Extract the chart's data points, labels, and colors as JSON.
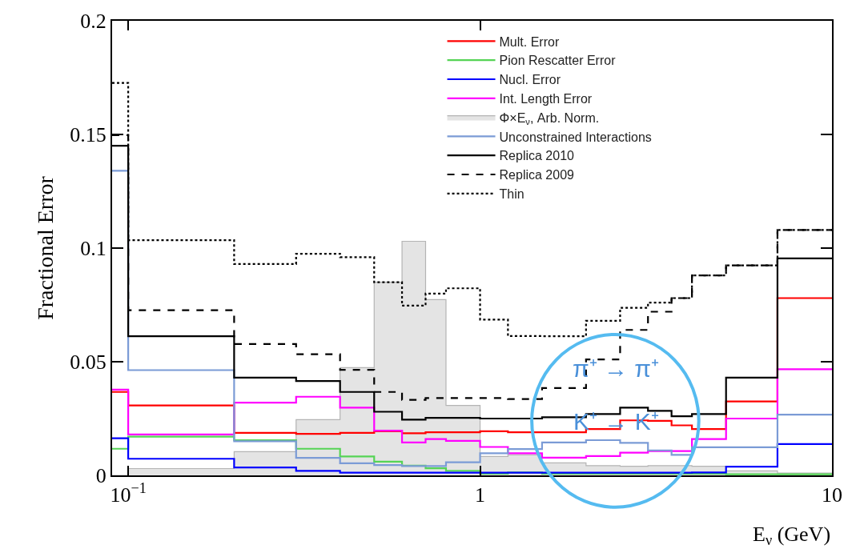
{
  "chart_data": {
    "type": "step",
    "ylabel": "Fractional Error",
    "xlabel": "E$_{ν}$ (GeV)",
    "x": [
      0.09,
      0.1,
      0.2,
      0.3,
      0.4,
      0.5,
      0.6,
      0.7,
      0.8,
      1.0,
      1.2,
      1.5,
      2,
      2.5,
      3,
      3.5,
      4,
      5,
      7,
      10
    ],
    "log": "x",
    "xlim": [
      0.09,
      10
    ],
    "xticks": [
      {
        "value": 0.1,
        "label": "10$^{−1}$"
      },
      1,
      10
    ],
    "ylim": [
      0,
      0.2
    ],
    "yticks": [
      0,
      0.05,
      0.1,
      0.15,
      0.2
    ],
    "legend": "top right",
    "series": [
      {
        "name": "Mult. Error",
        "color": "#ff0000",
        "values": [
          0.0367,
          0.0308,
          0.0187,
          0.0183,
          0.0187,
          0.0194,
          0.0185,
          0.019,
          0.019,
          0.0194,
          0.019,
          0.019,
          0.0204,
          0.0242,
          0.024,
          0.022,
          0.0204,
          0.0325,
          0.078,
          0.078
        ]
      },
      {
        "name": "Pion Rescatter Error",
        "color": "#55d455",
        "values": [
          0.0117,
          0.017,
          0.0155,
          0.0117,
          0.0083,
          0.006,
          0.0043,
          0.0031,
          0.002,
          0.0007,
          0.0013,
          0.0007,
          0.0007,
          0.0007,
          0.0007,
          0.0007,
          0.0007,
          0.0005,
          0.0005,
          0.0005
        ]
      },
      {
        "name": "Nucl. Error",
        "color": "#0000ff",
        "values": [
          0.0163,
          0.0073,
          0.0035,
          0.002,
          0.0012,
          0.0012,
          0.0012,
          0.0012,
          0.0012,
          0.0012,
          0.0012,
          0.0012,
          0.0012,
          0.0012,
          0.0012,
          0.0012,
          0.0013,
          0.0038,
          0.0138,
          0.0138
        ]
      },
      {
        "name": "Int. Length Error",
        "color": "#ff00ff",
        "values": [
          0.0377,
          0.018,
          0.032,
          0.0346,
          0.0298,
          0.0197,
          0.0145,
          0.016,
          0.0152,
          0.0125,
          0.0097,
          0.0078,
          0.0085,
          0.01,
          0.0107,
          0.0107,
          0.016,
          0.025,
          0.0467,
          0.0467
        ]
      },
      {
        "name": "Φ×E$_{ν}$, Arb. Norm.",
        "type": "area",
        "color": "#e4e4e4",
        "values": [
          0,
          0.003,
          0.0104,
          0.0245,
          0.0474,
          0.085,
          0.103,
          0.0773,
          0.0308,
          0.0083,
          0.009,
          0.0055,
          0.0043,
          0.004,
          0.0043,
          0.0043,
          0.004,
          0.002,
          0.001,
          0.001
        ]
      },
      {
        "name": "Unconstrained Interactions",
        "color": "#7b9bd6",
        "values": [
          0.134,
          0.0463,
          0.015,
          0.0077,
          0.0053,
          0.0045,
          0.0041,
          0.0041,
          0.0058,
          0.0097,
          0.0116,
          0.0145,
          0.0155,
          0.0143,
          0.011,
          0.009,
          0.0124,
          0.0124,
          0.0267,
          0.0267
        ]
      },
      {
        "name": "Replica 2010",
        "color": "#000000",
        "line_style": "solid",
        "values": [
          0.145,
          0.0612,
          0.043,
          0.0415,
          0.0367,
          0.028,
          0.0245,
          0.0253,
          0.0253,
          0.025,
          0.025,
          0.0256,
          0.027,
          0.0298,
          0.0284,
          0.026,
          0.027,
          0.043,
          0.0955,
          0.0955
        ]
      },
      {
        "name": "Replica 2009",
        "color": "#000000",
        "line_style": "dashed",
        "values": [
          0.1497,
          0.0727,
          0.0578,
          0.0533,
          0.0464,
          0.0367,
          0.0332,
          0.034,
          0.034,
          0.034,
          0.0336,
          0.0384,
          0.051,
          0.064,
          0.072,
          0.078,
          0.088,
          0.0924,
          0.108,
          0.108
        ]
      },
      {
        "name": "Thin",
        "color": "#000000",
        "line_style": "dotted",
        "values": [
          0.1727,
          0.1035,
          0.093,
          0.0975,
          0.096,
          0.085,
          0.0747,
          0.08,
          0.0823,
          0.0685,
          0.0613,
          0.0612,
          0.068,
          0.0737,
          0.076,
          0.078,
          0.088,
          0.0924,
          0.108,
          0.108
        ]
      }
    ],
    "annotations": [
      "π⁺ → π⁺",
      "K⁺ → K⁺"
    ]
  }
}
